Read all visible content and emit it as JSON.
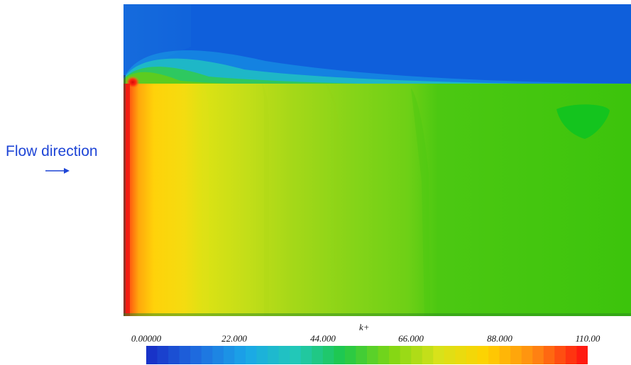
{
  "annotation": {
    "flow_label": "Flow direction",
    "arrow_icon": "right-arrow-icon",
    "color": "#1e45d6"
  },
  "colorbar": {
    "title": "k+",
    "ticks": [
      "0.00000",
      "22.000",
      "44.000",
      "66.000",
      "88.000",
      "110.00"
    ],
    "min": 0,
    "max": 110,
    "colors": [
      "#1833c8",
      "#1f6fe0",
      "#1aa8e8",
      "#22c8b8",
      "#1ec84a",
      "#7fd614",
      "#d8e21a",
      "#ffd200",
      "#ff8a12",
      "#ff1a10"
    ]
  },
  "plot_colors": {
    "upper_region": "#0f5fdb",
    "lower_region": "#3cc40c",
    "inlet_hot": "#ff2a12",
    "band_yellow": "#ffd60a",
    "band_lime": "#b6dc1a",
    "band_green": "#7ed41a",
    "recirculation_spot": "#14c41e"
  }
}
